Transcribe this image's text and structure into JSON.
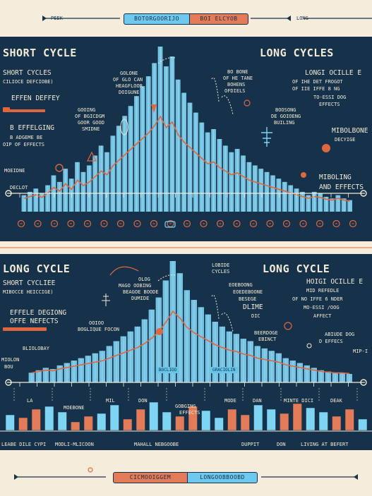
{
  "header": {
    "left_label": "PEEK",
    "center_left": "BOTORGOORIJO",
    "center_right": "BOI ELCYOB",
    "right_label": "LONG"
  },
  "footer": {
    "center_left": "CICMOOIGGEM",
    "center_right": "LONGOOBBOOBD"
  },
  "panel1": {
    "title_left": "SHORT CYCLE",
    "title_right": "LONG CYCLES",
    "subtitle_left": "SHORT CYCLES",
    "subtitle_left_2": "CILIOCE DEFCIOBE)",
    "left_notes": [
      "EFFEN DEFFEY",
      "B EFFELGING",
      "B ADGEME BE",
      "OIP OF EFFECTS"
    ],
    "left_bottom": [
      "MOEIDNE",
      "DECLOT"
    ],
    "center_notes_1": [
      "GOLONE",
      "OF GLO CAN",
      "HEAGFLOOR",
      "DOIGUNE"
    ],
    "center_notes_2": [
      "GOOING",
      "OF BGICDGM",
      "GOOR GOOD",
      "SMIDNE"
    ],
    "center_notes_3": [
      "BO BONE",
      "OF HE TANE",
      "BOHENS",
      "OFDIELS"
    ],
    "center_notes_4": [
      "BOOSONG",
      "DE GOIOENG",
      "BUILING"
    ],
    "right_notes": [
      "LONGI OCILLE E",
      "OF IHE DET FROGOT",
      "OF IIE IFFE 8 NG",
      "TO-ESSI DOG",
      "EFFECTS"
    ],
    "right_lower": [
      "MIBOLBONE",
      "DECYIGE"
    ],
    "right_bottom": [
      "MIBOLING",
      "AND EFFECTS"
    ]
  },
  "panel2": {
    "title_left": "LONG CYCLE",
    "title_right": "LONG CYCLE",
    "subtitle_left": "SHORT CYCLIEE",
    "subtitle_left_2": "MIBOCCE HEICCIGE)",
    "left_notes": [
      "EFFELE DEGIONG",
      "OFFE NEFECTS"
    ],
    "left_bottom": [
      "BLIOLOBAY",
      "MIOLON",
      "BOU"
    ],
    "center_notes_1": [
      "OLOG",
      "MAGO OOBING",
      "BEAGOE BOODE",
      "DUMIDE"
    ],
    "center_notes_2": [
      "OOIOO",
      "BOGLIQUE FOCON"
    ],
    "center_notes_3": [
      "LOBIDE",
      "CYCLES"
    ],
    "center_notes_4": [
      "EOEBOONG",
      "EOEDEBOONE",
      "BESEGE",
      "DLIME",
      "DIC"
    ],
    "center_notes_5": [
      "BEERDOGE",
      "EBINCT"
    ],
    "right_notes": [
      "HOIGI OCILLE E",
      "MID REFEDLE",
      "OF NO IFFE 6 NDER",
      "MO-ESSI /OOG",
      "AFFECT"
    ],
    "right_lower": [
      "ABIUDE DOG",
      "D EFFECS"
    ],
    "right_far": "MIP-I",
    "tag_1": "BOCLIOO",
    "tag_2": "GRACIOLIN",
    "category_labels": [
      "LA",
      "MOEBONE",
      "MIL",
      "DON",
      "MODE",
      "DAN",
      "MINTE DICI",
      "DEAK"
    ],
    "mid_label": [
      "GOBGING",
      "EFFECTS"
    ],
    "bottom_labels": [
      "LEABE DILE CYPI",
      "MODLI-MLICOON",
      "MAHALL NEBGOOBE",
      "DUPPIT",
      "DON",
      "LIVING AT BEFERT"
    ]
  },
  "chart_data": [
    {
      "type": "bar",
      "title": "SHORT CYCLE",
      "series": [
        {
          "values": [
            10,
            12,
            14,
            11,
            16,
            22,
            18,
            26,
            20,
            30,
            24,
            28,
            34,
            40,
            36,
            46,
            52,
            58,
            64,
            70,
            76,
            82,
            90,
            100,
            88,
            94,
            80,
            72,
            66,
            60,
            54,
            48,
            50,
            44,
            40,
            36,
            38,
            34,
            30,
            28,
            26,
            24,
            22,
            20,
            18,
            16,
            14,
            12,
            10,
            12,
            11,
            9,
            8,
            10,
            8,
            7
          ]
        }
      ]
    },
    {
      "type": "bar",
      "title": "LONG CYCLE",
      "series": [
        {
          "values": [
            8,
            10,
            12,
            11,
            14,
            16,
            18,
            20,
            22,
            24,
            26,
            30,
            34,
            38,
            42,
            46,
            52,
            60,
            70,
            84,
            100,
            90,
            76,
            68,
            62,
            56,
            50,
            46,
            42,
            40,
            36,
            34,
            30,
            28,
            26,
            24,
            20,
            18,
            16,
            14,
            12,
            10,
            9,
            8,
            8,
            7
          ]
        }
      ]
    },
    {
      "type": "bar",
      "series": [
        {
          "values": [
            22,
            18,
            30,
            34,
            26,
            12,
            20,
            24,
            36,
            16,
            30,
            40,
            26,
            20,
            34,
            28,
            18,
            30,
            22,
            36,
            30,
            24,
            38,
            32,
            26,
            20,
            30,
            16
          ]
        }
      ]
    }
  ]
}
